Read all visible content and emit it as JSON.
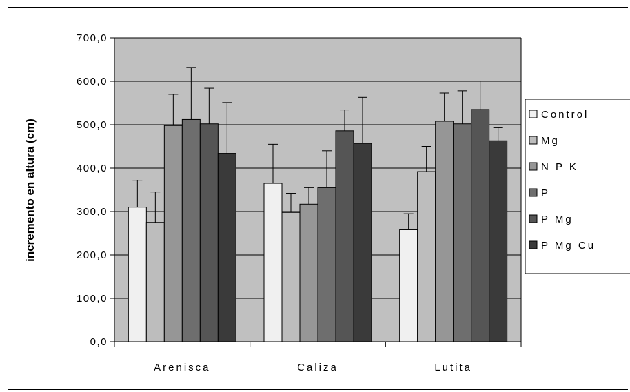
{
  "chart_data": {
    "type": "bar",
    "title": "",
    "xlabel": "",
    "ylabel": "incremento en altura (cm)",
    "ylim": [
      0,
      700
    ],
    "yticks": [
      "0,0",
      "100,0",
      "200,0",
      "300,0",
      "400,0",
      "500,0",
      "600,0",
      "700,0"
    ],
    "grid": true,
    "legend_position": "right",
    "categories": [
      "Arenisca",
      "Caliza",
      "Lutita"
    ],
    "series": [
      {
        "name": "Control",
        "color": "#f0f0f0",
        "values": [
          310,
          365,
          258
        ],
        "errors": [
          62,
          90,
          37
        ]
      },
      {
        "name": "Mg",
        "color": "#bdbdbd",
        "values": [
          275,
          298,
          392
        ],
        "errors": [
          70,
          44,
          58
        ]
      },
      {
        "name": "N P K",
        "color": "#969696",
        "values": [
          498,
          317,
          508
        ],
        "errors": [
          72,
          38,
          65
        ]
      },
      {
        "name": "P",
        "color": "#6e6e6e",
        "values": [
          512,
          355,
          502
        ],
        "errors": [
          120,
          85,
          76
        ]
      },
      {
        "name": "P Mg",
        "color": "#555555",
        "values": [
          502,
          486,
          535
        ],
        "errors": [
          82,
          48,
          65
        ]
      },
      {
        "name": "P Mg Cu",
        "color": "#3a3a3a",
        "values": [
          434,
          457,
          463
        ],
        "errors": [
          117,
          106,
          30
        ]
      }
    ]
  }
}
